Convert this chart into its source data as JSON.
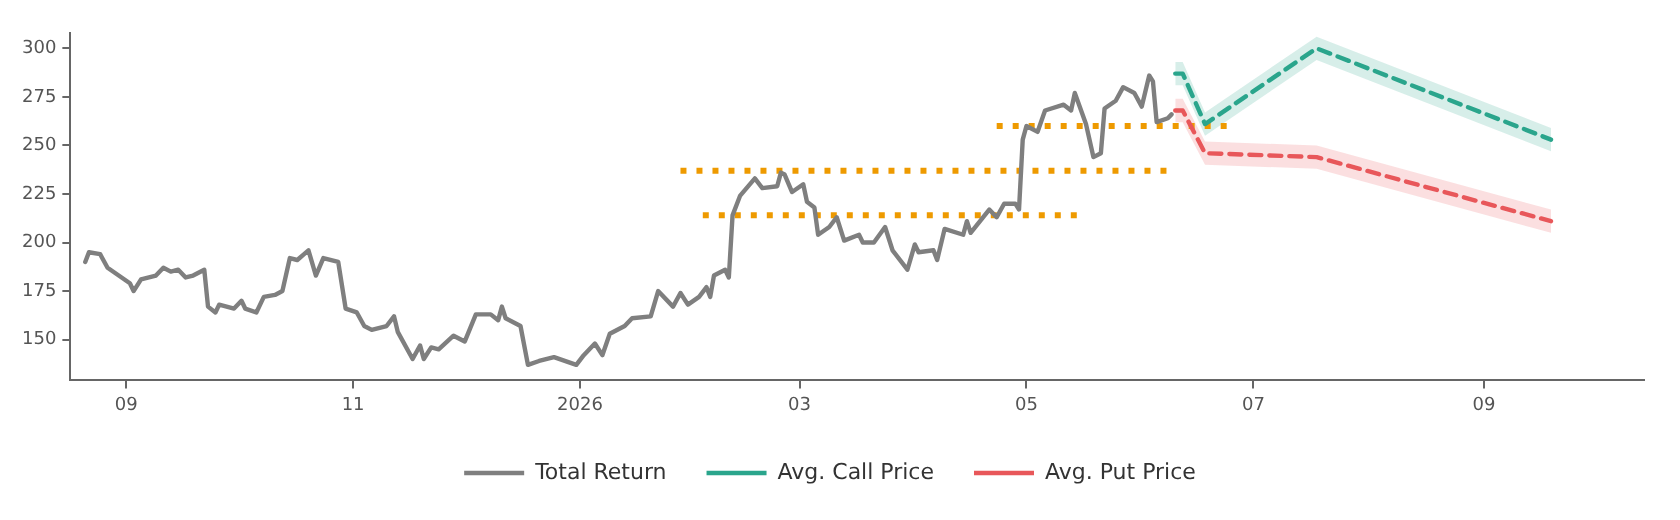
{
  "chart_data": {
    "type": "line",
    "xlim": [
      "2025-08-17",
      "2026-10-14"
    ],
    "xticks": [
      {
        "value": "2025-09-01",
        "label": "09"
      },
      {
        "value": "2025-11-01",
        "label": "11"
      },
      {
        "value": "2026-01-01",
        "label": "2026"
      },
      {
        "value": "2026-03-01",
        "label": "03"
      },
      {
        "value": "2026-05-01",
        "label": "05"
      },
      {
        "value": "2026-07-01",
        "label": "07"
      },
      {
        "value": "2026-09-01",
        "label": "09"
      }
    ],
    "ylim": [
      129,
      308
    ],
    "yticks": [
      150,
      175,
      200,
      225,
      250,
      275,
      300
    ],
    "grid": false,
    "legend": "bottom",
    "marker": "none",
    "series": [
      {
        "name": "Total Return",
        "color": "#7f7f7f",
        "line_style": "solid",
        "x": [
          "2025-08-21",
          "2025-08-22",
          "2025-08-25",
          "2025-08-27",
          "2025-09-02",
          "2025-09-03",
          "2025-09-05",
          "2025-09-09",
          "2025-09-11",
          "2025-09-13",
          "2025-09-15",
          "2025-09-17",
          "2025-09-19",
          "2025-09-22",
          "2025-09-23",
          "2025-09-25",
          "2025-09-26",
          "2025-09-30",
          "2025-10-02",
          "2025-10-03",
          "2025-10-06",
          "2025-10-08",
          "2025-10-11",
          "2025-10-13",
          "2025-10-15",
          "2025-10-17",
          "2025-10-20",
          "2025-10-22",
          "2025-10-24",
          "2025-10-28",
          "2025-10-30",
          "2025-11-02",
          "2025-11-04",
          "2025-11-06",
          "2025-11-10",
          "2025-11-12",
          "2025-11-13",
          "2025-11-17",
          "2025-11-19",
          "2025-11-20",
          "2025-11-22",
          "2025-11-24",
          "2025-11-28",
          "2025-12-01",
          "2025-12-04",
          "2025-12-08",
          "2025-12-10",
          "2025-12-11",
          "2025-12-12",
          "2025-12-16",
          "2025-12-18",
          "2025-12-21",
          "2025-12-25",
          "2025-12-31",
          "2026-01-02",
          "2026-01-05",
          "2026-01-07",
          "2026-01-09",
          "2026-01-13",
          "2026-01-15",
          "2026-01-20",
          "2026-01-22",
          "2026-01-26",
          "2026-01-28",
          "2026-01-30",
          "2026-02-02",
          "2026-02-04",
          "2026-02-05",
          "2026-02-06",
          "2026-02-09",
          "2026-02-10",
          "2026-02-11",
          "2026-02-13",
          "2026-02-17",
          "2026-02-19",
          "2026-02-23",
          "2026-02-24",
          "2026-02-25",
          "2026-02-27",
          "2026-03-02",
          "2026-03-03",
          "2026-03-05",
          "2026-03-06",
          "2026-03-09",
          "2026-03-11",
          "2026-03-13",
          "2026-03-17",
          "2026-03-18",
          "2026-03-21",
          "2026-03-24",
          "2026-03-26",
          "2026-03-30",
          "2026-04-01",
          "2026-04-02",
          "2026-04-06",
          "2026-04-07",
          "2026-04-09",
          "2026-04-14",
          "2026-04-15",
          "2026-04-16",
          "2026-04-21",
          "2026-04-23",
          "2026-04-25",
          "2026-04-28",
          "2026-04-29",
          "2026-04-30",
          "2026-05-01",
          "2026-05-04",
          "2026-05-06",
          "2026-05-11",
          "2026-05-13",
          "2026-05-14",
          "2026-05-17",
          "2026-05-19",
          "2026-05-21",
          "2026-05-22",
          "2026-05-25",
          "2026-05-27",
          "2026-05-30",
          "2026-06-01",
          "2026-06-03",
          "2026-06-04",
          "2026-06-05",
          "2026-06-08",
          "2026-06-09"
        ],
        "values": [
          190,
          195,
          194,
          187,
          179,
          175,
          181,
          183,
          187,
          185,
          186,
          182,
          183,
          186,
          167,
          164,
          168,
          166,
          170,
          166,
          164,
          172,
          173,
          175,
          192,
          191,
          196,
          183,
          192,
          190,
          166,
          164,
          157,
          155,
          157,
          162,
          154,
          140,
          147,
          140,
          146,
          145,
          152,
          149,
          163,
          163,
          160,
          167,
          161,
          157,
          137,
          139,
          141,
          137,
          142,
          148,
          142,
          153,
          157,
          161,
          162,
          175,
          167,
          174,
          168,
          172,
          177,
          172,
          183,
          186,
          182,
          214,
          224,
          233,
          228,
          229,
          236,
          235,
          226,
          230,
          221,
          218,
          204,
          208,
          213,
          201,
          204,
          200,
          200,
          208,
          196,
          186,
          199,
          195,
          196,
          191,
          207,
          204,
          211,
          205,
          217,
          213,
          220,
          220,
          217,
          253,
          260,
          257,
          268,
          271,
          268,
          277,
          261,
          244,
          246,
          269,
          273,
          280,
          277,
          270,
          286,
          283,
          262,
          264,
          266
        ]
      },
      {
        "name": "Avg. Call Price",
        "color": "#2aa58c",
        "line_style": "dashed",
        "x": [
          "2026-06-10",
          "2026-06-12",
          "2026-06-18",
          "2026-07-18",
          "2026-09-19"
        ],
        "values": [
          287,
          287,
          261,
          300,
          253
        ],
        "lower": [
          281,
          281,
          255,
          294,
          247
        ],
        "upper": [
          293,
          293,
          267,
          306,
          259
        ]
      },
      {
        "name": "Avg. Put Price",
        "color": "#e8575a",
        "line_style": "dashed",
        "x": [
          "2026-06-10",
          "2026-06-12",
          "2026-06-18",
          "2026-07-18",
          "2026-09-19"
        ],
        "values": [
          268,
          268,
          246,
          244,
          211
        ],
        "lower": [
          262,
          262,
          240,
          238,
          205
        ],
        "upper": [
          274,
          274,
          252,
          250,
          217
        ]
      },
      {
        "color": "#ee9a00",
        "line_style": "dotted",
        "x": [
          "2026-01-28",
          "2026-06-09"
        ],
        "values": [
          237,
          237
        ]
      },
      {
        "color": "#ee9a00",
        "line_style": "dotted",
        "x": [
          "2026-02-03",
          "2026-05-16"
        ],
        "values": [
          214,
          214
        ]
      },
      {
        "color": "#ee9a00",
        "line_style": "dotted",
        "x": [
          "2026-04-23",
          "2026-06-25"
        ],
        "values": [
          260,
          260
        ]
      }
    ]
  }
}
